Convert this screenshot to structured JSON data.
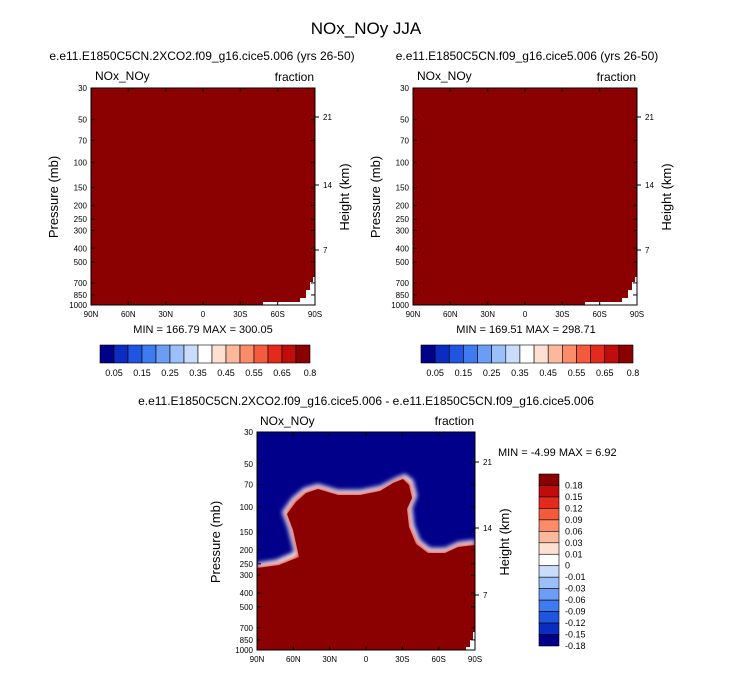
{
  "figure": {
    "title": "NOx_NOy JJA",
    "colors": {
      "dark_red": "#8b0000",
      "dark_blue": "#00008b"
    }
  },
  "chart_data": [
    {
      "type": "heatmap",
      "title": "e.e11.E1850C5CN.2XCO2.f09_g16.cice5.006 (yrs 26-50)",
      "left_label": "NOx_NOy",
      "right_label": "fraction",
      "ylabel": "Pressure (mb)",
      "ylabel_right": "Height (km)",
      "x_ticks": [
        "90N",
        "60N",
        "30N",
        "0",
        "30S",
        "60S",
        "90S"
      ],
      "y_ticks": [
        "30",
        "50",
        "70",
        "100",
        "150",
        "200",
        "250",
        "300",
        "400",
        "500",
        "700",
        "850",
        "1000"
      ],
      "height_ticks": [
        "21",
        "14",
        "7"
      ],
      "stats": "MIN = 166.79   MAX = 300.05",
      "colorbar_labels": [
        "0.05",
        "0.15",
        "0.25",
        "0.35",
        "0.45",
        "0.55",
        "0.65",
        "0.8"
      ],
      "colorbar_colors": [
        "#00008b",
        "#0a2cc0",
        "#1f55e0",
        "#3e7bf0",
        "#6c9df5",
        "#9bbff8",
        "#c9dcfb",
        "#ffffff",
        "#fde0d2",
        "#fcb89b",
        "#fa8c6a",
        "#f45b3d",
        "#e32a1c",
        "#c10c0c",
        "#8b0000"
      ]
    },
    {
      "type": "heatmap",
      "title": "e.e11.E1850C5CN.f09_g16.cice5.006 (yrs 26-50)",
      "left_label": "NOx_NOy",
      "right_label": "fraction",
      "ylabel": "Pressure (mb)",
      "ylabel_right": "Height (km)",
      "x_ticks": [
        "90N",
        "60N",
        "30N",
        "0",
        "30S",
        "60S",
        "90S"
      ],
      "y_ticks": [
        "30",
        "50",
        "70",
        "100",
        "150",
        "200",
        "250",
        "300",
        "400",
        "500",
        "700",
        "850",
        "1000"
      ],
      "height_ticks": [
        "21",
        "14",
        "7"
      ],
      "stats": "MIN = 169.51   MAX = 298.71",
      "colorbar_labels": [
        "0.05",
        "0.15",
        "0.25",
        "0.35",
        "0.45",
        "0.55",
        "0.65",
        "0.8"
      ],
      "colorbar_colors": [
        "#00008b",
        "#0a2cc0",
        "#1f55e0",
        "#3e7bf0",
        "#6c9df5",
        "#9bbff8",
        "#c9dcfb",
        "#ffffff",
        "#fde0d2",
        "#fcb89b",
        "#fa8c6a",
        "#f45b3d",
        "#e32a1c",
        "#c10c0c",
        "#8b0000"
      ]
    },
    {
      "type": "heatmap",
      "title": "e.e11.E1850C5CN.2XCO2.f09_g16.cice5.006 - e.e11.E1850C5CN.f09_g16.cice5.006",
      "left_label": "NOx_NOy",
      "right_label": "fraction",
      "ylabel": "Pressure (mb)",
      "ylabel_right": "Height (km)",
      "x_ticks": [
        "90N",
        "60N",
        "30N",
        "0",
        "30S",
        "60S",
        "90S"
      ],
      "y_ticks": [
        "30",
        "50",
        "70",
        "100",
        "150",
        "200",
        "250",
        "300",
        "400",
        "500",
        "700",
        "850",
        "1000"
      ],
      "height_ticks": [
        "21",
        "14",
        "7"
      ],
      "stats": "MIN =  -4.99   MAX =   6.92",
      "colorbar_labels": [
        "0.18",
        "0.15",
        "0.12",
        "0.09",
        "0.06",
        "0.03",
        "0.01",
        "0",
        "-0.01",
        "-0.03",
        "-0.06",
        "-0.09",
        "-0.12",
        "-0.15",
        "-0.18"
      ],
      "colorbar_colors": [
        "#8b0000",
        "#c10c0c",
        "#e32a1c",
        "#f45b3d",
        "#fa8c6a",
        "#fcb89b",
        "#fde0d2",
        "#ffffff",
        "#c9dcfb",
        "#9bbff8",
        "#6c9df5",
        "#3e7bf0",
        "#1f55e0",
        "#0a2cc0",
        "#00008b"
      ]
    }
  ]
}
